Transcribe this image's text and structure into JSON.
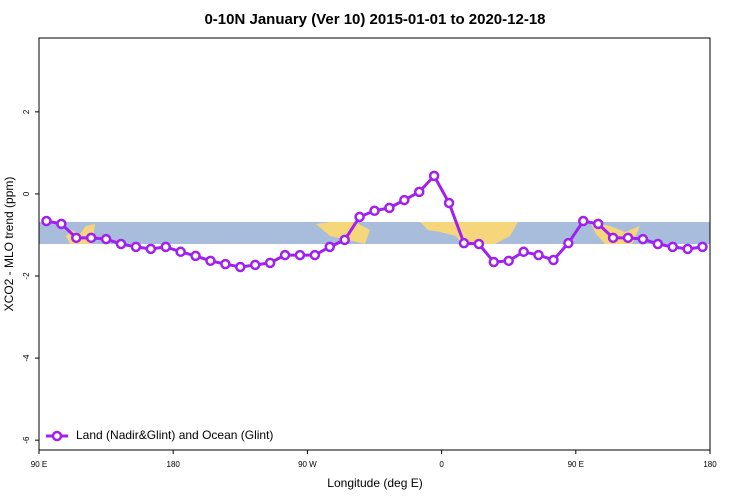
{
  "chart_data": {
    "type": "line",
    "title": "0-10N January (Ver 10)   2015-01-01 to 2020-12-18",
    "x_label": "Longitude (deg E)",
    "y_label": "XCO2 - MLO trend (ppm)",
    "x": [
      95,
      105,
      115,
      125,
      135,
      145,
      155,
      165,
      175,
      185,
      195,
      205,
      215,
      225,
      235,
      245,
      255,
      265,
      275,
      285,
      295,
      305,
      315,
      325,
      335,
      345,
      355,
      365,
      375,
      385,
      395,
      405,
      415,
      425,
      435,
      445,
      455,
      465,
      475,
      485,
      495,
      505,
      515,
      525,
      535
    ],
    "series": [
      {
        "name": "Land (Nadir&Glint) and Ocean (Glint)",
        "color": "#a020f0",
        "values": [
          -0.66,
          -0.73,
          -1.07,
          -1.07,
          -1.1,
          -1.22,
          -1.29,
          -1.34,
          -1.29,
          -1.41,
          -1.51,
          -1.63,
          -1.71,
          -1.78,
          -1.73,
          -1.68,
          -1.49,
          -1.49,
          -1.49,
          -1.29,
          -1.12,
          -0.56,
          -0.41,
          -0.34,
          -0.15,
          0.05,
          0.44,
          -0.22,
          -1.2,
          -1.22,
          -1.66,
          -1.63,
          -1.41,
          -1.49,
          -1.61,
          -1.2,
          -0.66,
          -0.73,
          -1.07,
          -1.07,
          -1.1,
          -1.22,
          -1.29,
          -1.34,
          -1.29
        ]
      }
    ],
    "xlim": [
      90,
      540
    ],
    "xticks": [
      {
        "value": 90,
        "label": "90 E"
      },
      180,
      {
        "value": 270,
        "label": "90 W"
      },
      {
        "value": 360,
        "label": "0"
      },
      {
        "value": 450,
        "label": "90 E"
      },
      {
        "value": 540,
        "label": "180"
      }
    ],
    "ylim": [
      -6.24,
      3.8
    ],
    "yticks": [
      2,
      0,
      -2,
      -4,
      -6
    ],
    "legend": "bottom-left"
  }
}
